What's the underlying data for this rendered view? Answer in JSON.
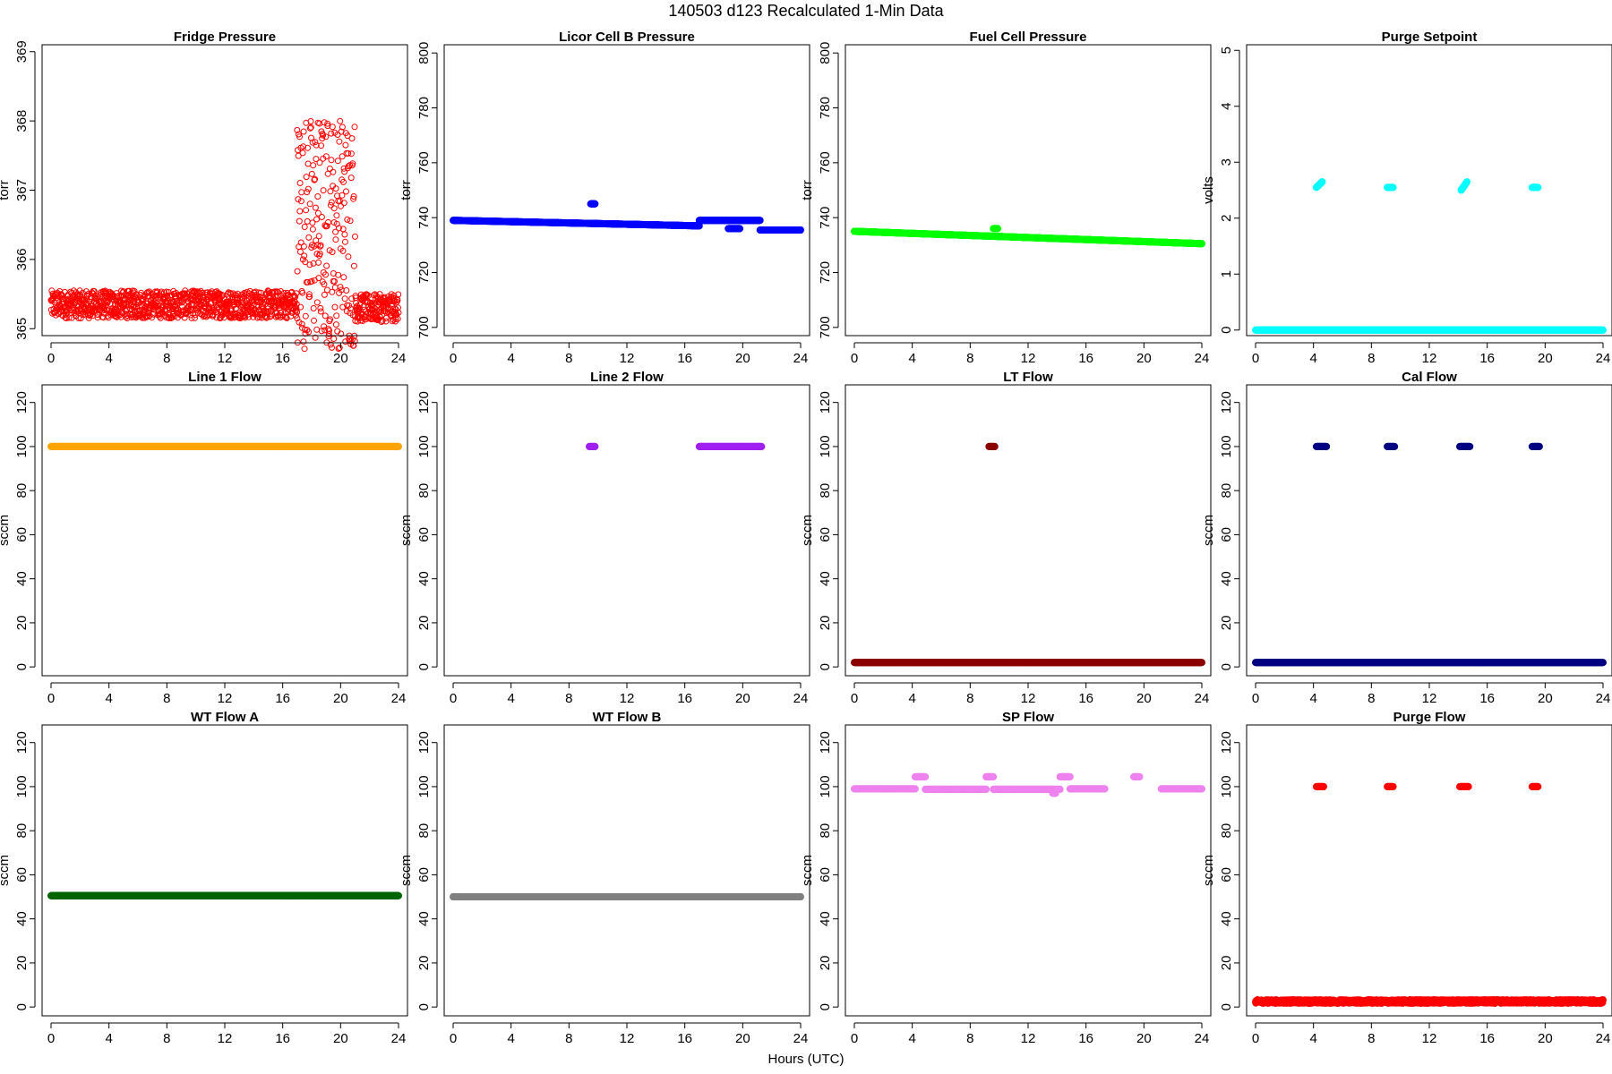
{
  "title": "140503   d123   Recalculated 1-Min Data",
  "xlabel": "Hours (UTC)",
  "chart_data": [
    {
      "type": "scatter",
      "title": "Fridge Pressure",
      "ylabel": "torr",
      "xlim": [
        0,
        24
      ],
      "ylim": [
        364.9,
        369.1
      ],
      "xticks": [
        0,
        4,
        8,
        12,
        16,
        20,
        24
      ],
      "yticks": [
        365,
        366,
        367,
        368,
        369
      ],
      "color": "#ff0000",
      "marker": "open-circle",
      "series": [
        {
          "segments": [
            {
              "x": [
                0,
                17
              ],
              "y": 365.35,
              "noise": 0.2
            },
            {
              "x": [
                17,
                21
              ],
              "y": 366.4,
              "noise": 1.7
            },
            {
              "x": [
                21,
                24
              ],
              "y": 365.3,
              "noise": 0.2
            }
          ]
        }
      ]
    },
    {
      "type": "scatter",
      "title": "Licor Cell B Pressure",
      "ylabel": "torr",
      "xlim": [
        0,
        24
      ],
      "ylim": [
        697,
        803
      ],
      "xticks": [
        0,
        4,
        8,
        12,
        16,
        20,
        24
      ],
      "yticks": [
        700,
        720,
        740,
        760,
        780,
        800
      ],
      "color": "#0000ff",
      "marker": "filled-circle",
      "series": [
        {
          "segments": [
            {
              "x": [
                0,
                17
              ],
              "y": [
                739,
                737
              ]
            },
            {
              "x": [
                9.5,
                9.8
              ],
              "y": 745
            },
            {
              "x": [
                17,
                21.2
              ],
              "y": 739
            },
            {
              "x": [
                19,
                19.8
              ],
              "y": 736
            },
            {
              "x": [
                21.2,
                24
              ],
              "y": 735.5
            }
          ]
        }
      ]
    },
    {
      "type": "scatter",
      "title": "Fuel Cell Pressure",
      "ylabel": "torr",
      "xlim": [
        0,
        24
      ],
      "ylim": [
        697,
        803
      ],
      "xticks": [
        0,
        4,
        8,
        12,
        16,
        20,
        24
      ],
      "yticks": [
        700,
        720,
        740,
        760,
        780,
        800
      ],
      "color": "#00ff00",
      "marker": "filled-circle",
      "series": [
        {
          "segments": [
            {
              "x": [
                0,
                24
              ],
              "y": [
                735,
                730.5
              ]
            },
            {
              "x": [
                9.6,
                9.9
              ],
              "y": 736
            }
          ]
        }
      ]
    },
    {
      "type": "scatter",
      "title": "Purge Setpoint",
      "ylabel": "volts",
      "xlim": [
        0,
        24
      ],
      "ylim": [
        -0.1,
        5.1
      ],
      "xticks": [
        0,
        4,
        8,
        12,
        16,
        20,
        24
      ],
      "yticks": [
        0,
        1,
        2,
        3,
        4,
        5
      ],
      "color": "#00ffff",
      "marker": "filled-circle",
      "series": [
        {
          "segments": [
            {
              "x": [
                0,
                24
              ],
              "y": 0
            },
            {
              "x": [
                4.2,
                4.6
              ],
              "y": [
                2.55,
                2.65
              ]
            },
            {
              "x": [
                9.1,
                9.5
              ],
              "y": 2.55
            },
            {
              "x": [
                14.2,
                14.6
              ],
              "y": [
                2.5,
                2.65
              ]
            },
            {
              "x": [
                19.1,
                19.5
              ],
              "y": 2.55
            }
          ]
        }
      ]
    },
    {
      "type": "scatter",
      "title": "Line 1 Flow",
      "ylabel": "sccm",
      "xlim": [
        0,
        24
      ],
      "ylim": [
        -4,
        128
      ],
      "xticks": [
        0,
        4,
        8,
        12,
        16,
        20,
        24
      ],
      "yticks": [
        0,
        20,
        40,
        60,
        80,
        100,
        120
      ],
      "color": "#ffa500",
      "marker": "filled-circle",
      "series": [
        {
          "segments": [
            {
              "x": [
                0,
                24
              ],
              "y": 100
            }
          ]
        }
      ]
    },
    {
      "type": "scatter",
      "title": "Line 2 Flow",
      "ylabel": "sccm",
      "xlim": [
        0,
        24
      ],
      "ylim": [
        -4,
        128
      ],
      "xticks": [
        0,
        4,
        8,
        12,
        16,
        20,
        24
      ],
      "yticks": [
        0,
        20,
        40,
        60,
        80,
        100,
        120
      ],
      "color": "#a020f0",
      "marker": "filled-circle",
      "series": [
        {
          "segments": [
            {
              "x": [
                9.4,
                9.8
              ],
              "y": 100
            },
            {
              "x": [
                17,
                21.3
              ],
              "y": 100
            }
          ]
        }
      ]
    },
    {
      "type": "scatter",
      "title": "LT Flow",
      "ylabel": "sccm",
      "xlim": [
        0,
        24
      ],
      "ylim": [
        -4,
        128
      ],
      "xticks": [
        0,
        4,
        8,
        12,
        16,
        20,
        24
      ],
      "yticks": [
        0,
        20,
        40,
        60,
        80,
        100,
        120
      ],
      "color": "#8b0000",
      "marker": "filled-circle",
      "series": [
        {
          "segments": [
            {
              "x": [
                0,
                24
              ],
              "y": 2
            },
            {
              "x": [
                9.3,
                9.7
              ],
              "y": 100
            }
          ]
        }
      ]
    },
    {
      "type": "scatter",
      "title": "Cal Flow",
      "ylabel": "sccm",
      "xlim": [
        0,
        24
      ],
      "ylim": [
        -4,
        128
      ],
      "xticks": [
        0,
        4,
        8,
        12,
        16,
        20,
        24
      ],
      "yticks": [
        0,
        20,
        40,
        60,
        80,
        100,
        120
      ],
      "color": "#000080",
      "marker": "filled-circle",
      "series": [
        {
          "segments": [
            {
              "x": [
                0,
                24
              ],
              "y": 2
            },
            {
              "x": [
                4.2,
                4.9
              ],
              "y": 100
            },
            {
              "x": [
                9.1,
                9.6
              ],
              "y": 100
            },
            {
              "x": [
                14.1,
                14.8
              ],
              "y": 100
            },
            {
              "x": [
                19.1,
                19.6
              ],
              "y": 100
            }
          ]
        }
      ]
    },
    {
      "type": "scatter",
      "title": "WT Flow A",
      "ylabel": "sccm",
      "xlim": [
        0,
        24
      ],
      "ylim": [
        -4,
        128
      ],
      "xticks": [
        0,
        4,
        8,
        12,
        16,
        20,
        24
      ],
      "yticks": [
        0,
        20,
        40,
        60,
        80,
        100,
        120
      ],
      "color": "#006400",
      "marker": "filled-circle",
      "series": [
        {
          "segments": [
            {
              "x": [
                0,
                24
              ],
              "y": 50.5
            }
          ]
        }
      ]
    },
    {
      "type": "scatter",
      "title": "WT Flow B",
      "ylabel": "sccm",
      "xlim": [
        0,
        24
      ],
      "ylim": [
        -4,
        128
      ],
      "xticks": [
        0,
        4,
        8,
        12,
        16,
        20,
        24
      ],
      "yticks": [
        0,
        20,
        40,
        60,
        80,
        100,
        120
      ],
      "color": "#808080",
      "marker": "filled-circle",
      "series": [
        {
          "segments": [
            {
              "x": [
                0,
                24
              ],
              "y": 50
            }
          ]
        }
      ]
    },
    {
      "type": "scatter",
      "title": "SP Flow",
      "ylabel": "sccm",
      "xlim": [
        0,
        24
      ],
      "ylim": [
        -4,
        128
      ],
      "xticks": [
        0,
        4,
        8,
        12,
        16,
        20,
        24
      ],
      "yticks": [
        0,
        20,
        40,
        60,
        80,
        100,
        120
      ],
      "color": "#ee82ee",
      "marker": "filled-circle",
      "series": [
        {
          "segments": [
            {
              "x": [
                0,
                4.2
              ],
              "y": 99
            },
            {
              "x": [
                4.2,
                4.9
              ],
              "y": 104.5
            },
            {
              "x": [
                4.9,
                9.1
              ],
              "y": 98.8
            },
            {
              "x": [
                9.1,
                9.6
              ],
              "y": 104.5
            },
            {
              "x": [
                9.6,
                14.2
              ],
              "y": 98.8
            },
            {
              "x": [
                13.7,
                13.9
              ],
              "y": 97
            },
            {
              "x": [
                14.2,
                14.9
              ],
              "y": 104.5
            },
            {
              "x": [
                14.9,
                17.3
              ],
              "y": 99
            },
            {
              "x": [
                19.3,
                19.7
              ],
              "y": 104.5
            },
            {
              "x": [
                21.2,
                24
              ],
              "y": 99
            }
          ]
        }
      ]
    },
    {
      "type": "scatter",
      "title": "Purge Flow",
      "ylabel": "sccm",
      "xlim": [
        0,
        24
      ],
      "ylim": [
        -4,
        128
      ],
      "xticks": [
        0,
        4,
        8,
        12,
        16,
        20,
        24
      ],
      "yticks": [
        0,
        20,
        40,
        60,
        80,
        100,
        120
      ],
      "color": "#ff0000",
      "marker": "filled-circle",
      "series": [
        {
          "segments": [
            {
              "x": [
                0,
                24
              ],
              "y": 2.5,
              "noise": 0.8
            },
            {
              "x": [
                4.2,
                4.7
              ],
              "y": 100
            },
            {
              "x": [
                9.1,
                9.5
              ],
              "y": 100
            },
            {
              "x": [
                14.1,
                14.7
              ],
              "y": 100
            },
            {
              "x": [
                19.1,
                19.5
              ],
              "y": 100
            }
          ]
        }
      ]
    }
  ]
}
